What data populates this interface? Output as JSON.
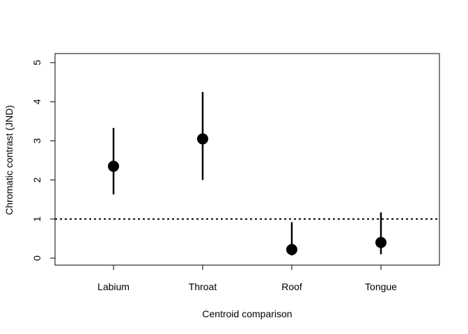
{
  "chart_data": {
    "type": "scatter",
    "title": "",
    "xlabel": "Centroid comparison",
    "ylabel": "Chromatic contrast (JND)",
    "categories": [
      "Labium",
      "Throat",
      "Roof",
      "Tongue"
    ],
    "values": [
      2.35,
      3.05,
      0.22,
      0.4
    ],
    "lower": [
      1.63,
      2.0,
      0.07,
      0.1
    ],
    "upper": [
      3.33,
      4.25,
      0.92,
      1.17
    ],
    "ylim": [
      0,
      5
    ],
    "yticks": [
      "0",
      "1",
      "2",
      "3",
      "4",
      "5"
    ],
    "reference_line": {
      "value": 1,
      "style": "dotted"
    },
    "grid": false,
    "colors": {
      "points": "#000000",
      "axes": "#000000"
    }
  }
}
